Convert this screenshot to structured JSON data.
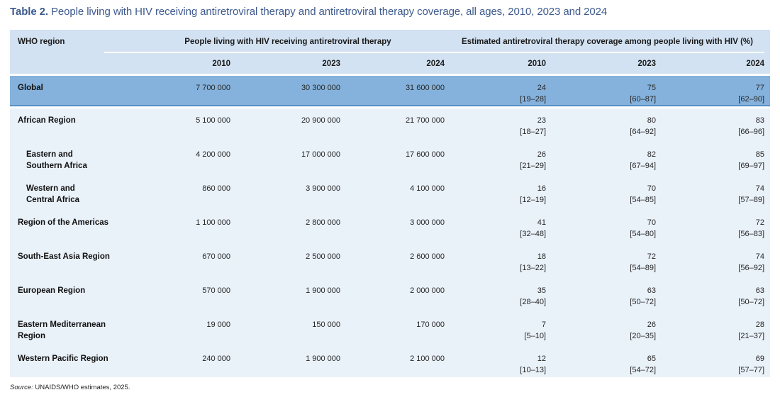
{
  "page": {
    "title_prefix": "Table 2.",
    "title_rest": " People living with HIV receiving antiretroviral therapy and antiretroviral therapy coverage, all ages, 2010, 2023 and 2024",
    "source_label": "Source:",
    "source_text": " UNAIDS/WHO estimates, 2025."
  },
  "table": {
    "region_header": "WHO region",
    "group_header_art": "People living with HIV receiving antiretroviral therapy",
    "group_header_coverage": "Estimated antiretroviral therapy coverage among people living with HIV (%)",
    "years": [
      "2010",
      "2023",
      "2024",
      "2010",
      "2023",
      "2024"
    ],
    "rows": [
      {
        "global": true,
        "indent": false,
        "region_lines": [
          "Global"
        ],
        "art": [
          "7 700 000",
          "30 300 000",
          "31 600 000"
        ],
        "coverage": [
          [
            "24",
            "[19–28]"
          ],
          [
            "75",
            "[60–87]"
          ],
          [
            "77",
            "[62–90]"
          ]
        ]
      },
      {
        "global": false,
        "indent": false,
        "region_lines": [
          "African Region"
        ],
        "art": [
          "5 100 000",
          "20 900 000",
          "21 700 000"
        ],
        "coverage": [
          [
            "23",
            "[18–27]"
          ],
          [
            "80",
            "[64–92]"
          ],
          [
            "83",
            "[66–96]"
          ]
        ]
      },
      {
        "global": false,
        "indent": true,
        "region_lines": [
          "Eastern and",
          "Southern Africa"
        ],
        "art": [
          "4 200 000",
          "17 000 000",
          "17 600 000"
        ],
        "coverage": [
          [
            "26",
            "[21–29]"
          ],
          [
            "82",
            "[67–94]"
          ],
          [
            "85",
            "[69–97]"
          ]
        ]
      },
      {
        "global": false,
        "indent": true,
        "region_lines": [
          "Western and",
          "Central Africa"
        ],
        "art": [
          "860 000",
          "3 900 000",
          "4 100 000"
        ],
        "coverage": [
          [
            "16",
            "[12–19]"
          ],
          [
            "70",
            "[54–85]"
          ],
          [
            "74",
            "[57–89]"
          ]
        ]
      },
      {
        "global": false,
        "indent": false,
        "region_lines": [
          "Region of the Americas"
        ],
        "art": [
          "1 100 000",
          "2 800 000",
          "3 000 000"
        ],
        "coverage": [
          [
            "41",
            "[32–48]"
          ],
          [
            "70",
            "[54–80]"
          ],
          [
            "72",
            "[56–83]"
          ]
        ]
      },
      {
        "global": false,
        "indent": false,
        "region_lines": [
          "South-East Asia Region"
        ],
        "art": [
          "670 000",
          "2 500 000",
          "2 600 000"
        ],
        "coverage": [
          [
            "18",
            "[13–22]"
          ],
          [
            "72",
            "[54–89]"
          ],
          [
            "74",
            "[56–92]"
          ]
        ]
      },
      {
        "global": false,
        "indent": false,
        "region_lines": [
          "European Region"
        ],
        "art": [
          "570 000",
          "1 900 000",
          "2 000 000"
        ],
        "coverage": [
          [
            "35",
            "[28–40]"
          ],
          [
            "63",
            "[50–72]"
          ],
          [
            "63",
            "[50–72]"
          ]
        ]
      },
      {
        "global": false,
        "indent": false,
        "region_lines": [
          "Eastern Mediterranean",
          "Region"
        ],
        "art": [
          "19 000",
          "150 000",
          "170 000"
        ],
        "coverage": [
          [
            "7",
            "[5–10]"
          ],
          [
            "26",
            "[20–35]"
          ],
          [
            "28",
            "[21–37]"
          ]
        ]
      },
      {
        "global": false,
        "indent": false,
        "region_lines": [
          "Western Pacific Region"
        ],
        "art": [
          "240 000",
          "1 900 000",
          "2 100 000"
        ],
        "coverage": [
          [
            "12",
            "[10–13]"
          ],
          [
            "65",
            "[54–72]"
          ],
          [
            "69",
            "[57–77]"
          ]
        ]
      }
    ]
  },
  "chart_data": {
    "type": "table",
    "title": "Table 2. People living with HIV receiving antiretroviral therapy and antiretroviral therapy coverage, all ages, 2010, 2023 and 2024",
    "column_groups": [
      "People living with HIV receiving antiretroviral therapy",
      "Estimated antiretroviral therapy coverage among people living with HIV (%)"
    ],
    "columns": [
      "WHO region",
      "ART 2010",
      "ART 2023",
      "ART 2024",
      "Coverage 2010 (%)",
      "Coverage 2023 (%)",
      "Coverage 2024 (%)"
    ],
    "rows": [
      [
        "Global",
        "7 700 000",
        "30 300 000",
        "31 600 000",
        "24 [19–28]",
        "75 [60–87]",
        "77 [62–90]"
      ],
      [
        "African Region",
        "5 100 000",
        "20 900 000",
        "21 700 000",
        "23 [18–27]",
        "80 [64–92]",
        "83 [66–96]"
      ],
      [
        "Eastern and Southern Africa",
        "4 200 000",
        "17 000 000",
        "17 600 000",
        "26 [21–29]",
        "82 [67–94]",
        "85 [69–97]"
      ],
      [
        "Western and Central Africa",
        "860 000",
        "3 900 000",
        "4 100 000",
        "16 [12–19]",
        "70 [54–85]",
        "74 [57–89]"
      ],
      [
        "Region of the Americas",
        "1 100 000",
        "2 800 000",
        "3 000 000",
        "41 [32–48]",
        "70 [54–80]",
        "72 [56–83]"
      ],
      [
        "South-East Asia Region",
        "670 000",
        "2 500 000",
        "2 600 000",
        "18 [13–22]",
        "72 [54–89]",
        "74 [56–92]"
      ],
      [
        "European Region",
        "570 000",
        "1 900 000",
        "2 000 000",
        "35 [28–40]",
        "63 [50–72]",
        "63 [50–72]"
      ],
      [
        "Eastern Mediterranean Region",
        "19 000",
        "150 000",
        "170 000",
        "7 [5–10]",
        "26 [20–35]",
        "28 [21–37]"
      ],
      [
        "Western Pacific Region",
        "240 000",
        "1 900 000",
        "2 100 000",
        "12 [10–13]",
        "65 [54–72]",
        "69 [57–77]"
      ]
    ],
    "source": "UNAIDS/WHO estimates, 2025."
  },
  "colors": {
    "title_text": "#3d5a8d",
    "header_bg": "#d3e2f2",
    "global_row_bg": "#85b2dc",
    "global_row_border": "#5891c7",
    "body_bg": "#e9f1f9",
    "text": "#1a1a1a"
  }
}
